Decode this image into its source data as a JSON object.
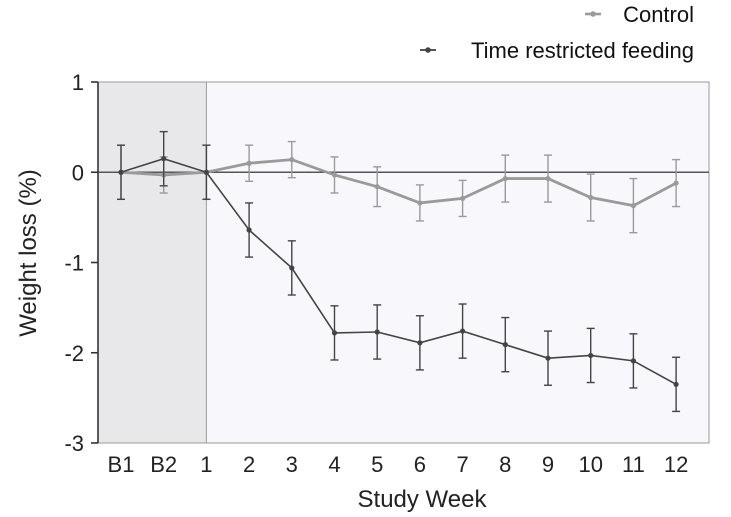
{
  "chart_data": {
    "type": "line",
    "xlabel": "Study Week",
    "ylabel": "Weight loss (%)",
    "ylim": [
      -3,
      1
    ],
    "yticks": [
      "1",
      "0",
      "-1",
      "-2",
      "-3"
    ],
    "x_tick_labels": [
      "B1",
      "B2",
      "1",
      "2",
      "3",
      "4",
      "5",
      "6",
      "7",
      "8",
      "9",
      "10",
      "11",
      "12"
    ],
    "baseline_shaded_region": [
      "B1",
      "B2"
    ],
    "grid": false,
    "legend_position": "top-right",
    "series": [
      {
        "name": "Control",
        "color": "#9a9a9a",
        "x": [
          "B1",
          "B2",
          "1",
          "2",
          "3",
          "4",
          "5",
          "6",
          "7",
          "8",
          "9",
          "10",
          "11",
          "12"
        ],
        "values": [
          0.0,
          -0.03,
          0.0,
          0.1,
          0.14,
          -0.03,
          -0.16,
          -0.34,
          -0.29,
          -0.07,
          -0.07,
          -0.28,
          -0.37,
          -0.12
        ],
        "error": [
          0.3,
          0.2,
          0.3,
          0.2,
          0.2,
          0.2,
          0.22,
          0.2,
          0.2,
          0.26,
          0.26,
          0.26,
          0.3,
          0.26
        ]
      },
      {
        "name": "Time restricted feeding",
        "color": "#444444",
        "x": [
          "B1",
          "B2",
          "1",
          "2",
          "3",
          "4",
          "5",
          "6",
          "7",
          "8",
          "9",
          "10",
          "11",
          "12"
        ],
        "values": [
          0.0,
          0.15,
          0.0,
          -0.64,
          -1.06,
          -1.78,
          -1.77,
          -1.89,
          -1.76,
          -1.91,
          -2.06,
          -2.03,
          -2.09,
          -2.35
        ],
        "error": [
          0.3,
          0.3,
          0.3,
          0.3,
          0.3,
          0.3,
          0.3,
          0.3,
          0.3,
          0.3,
          0.3,
          0.3,
          0.3,
          0.3
        ]
      }
    ]
  }
}
